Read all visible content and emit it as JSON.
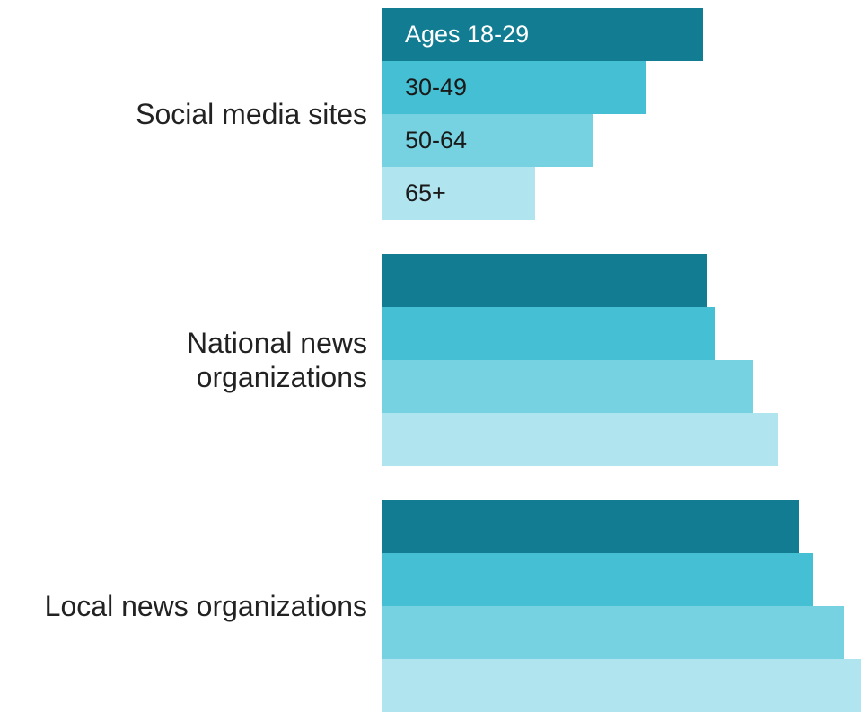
{
  "chart_data": {
    "type": "bar",
    "orientation": "horizontal",
    "title": "",
    "xlabel": "",
    "ylabel": "",
    "categories": [
      "Social media sites",
      "National news organizations",
      "Local news organizations"
    ],
    "category_lines": [
      [
        "Social media sites"
      ],
      [
        "National news",
        "organizations"
      ],
      [
        "Local news organizations"
      ]
    ],
    "series": [
      {
        "name": "Ages 18-29",
        "values": [
          67,
          68,
          87
        ],
        "color": "#127d92"
      },
      {
        "name": "30-49",
        "values": [
          55,
          69.5,
          90
        ],
        "color": "#45bfd3"
      },
      {
        "name": "50-64",
        "values": [
          44,
          77.5,
          96.5
        ],
        "color": "#76d1e1"
      },
      {
        "name": "65+",
        "values": [
          32,
          82.5,
          100
        ],
        "color": "#b0e4ee"
      }
    ],
    "xlim": [
      0,
      100
    ],
    "grid": false,
    "legend": "inline-first-group"
  }
}
